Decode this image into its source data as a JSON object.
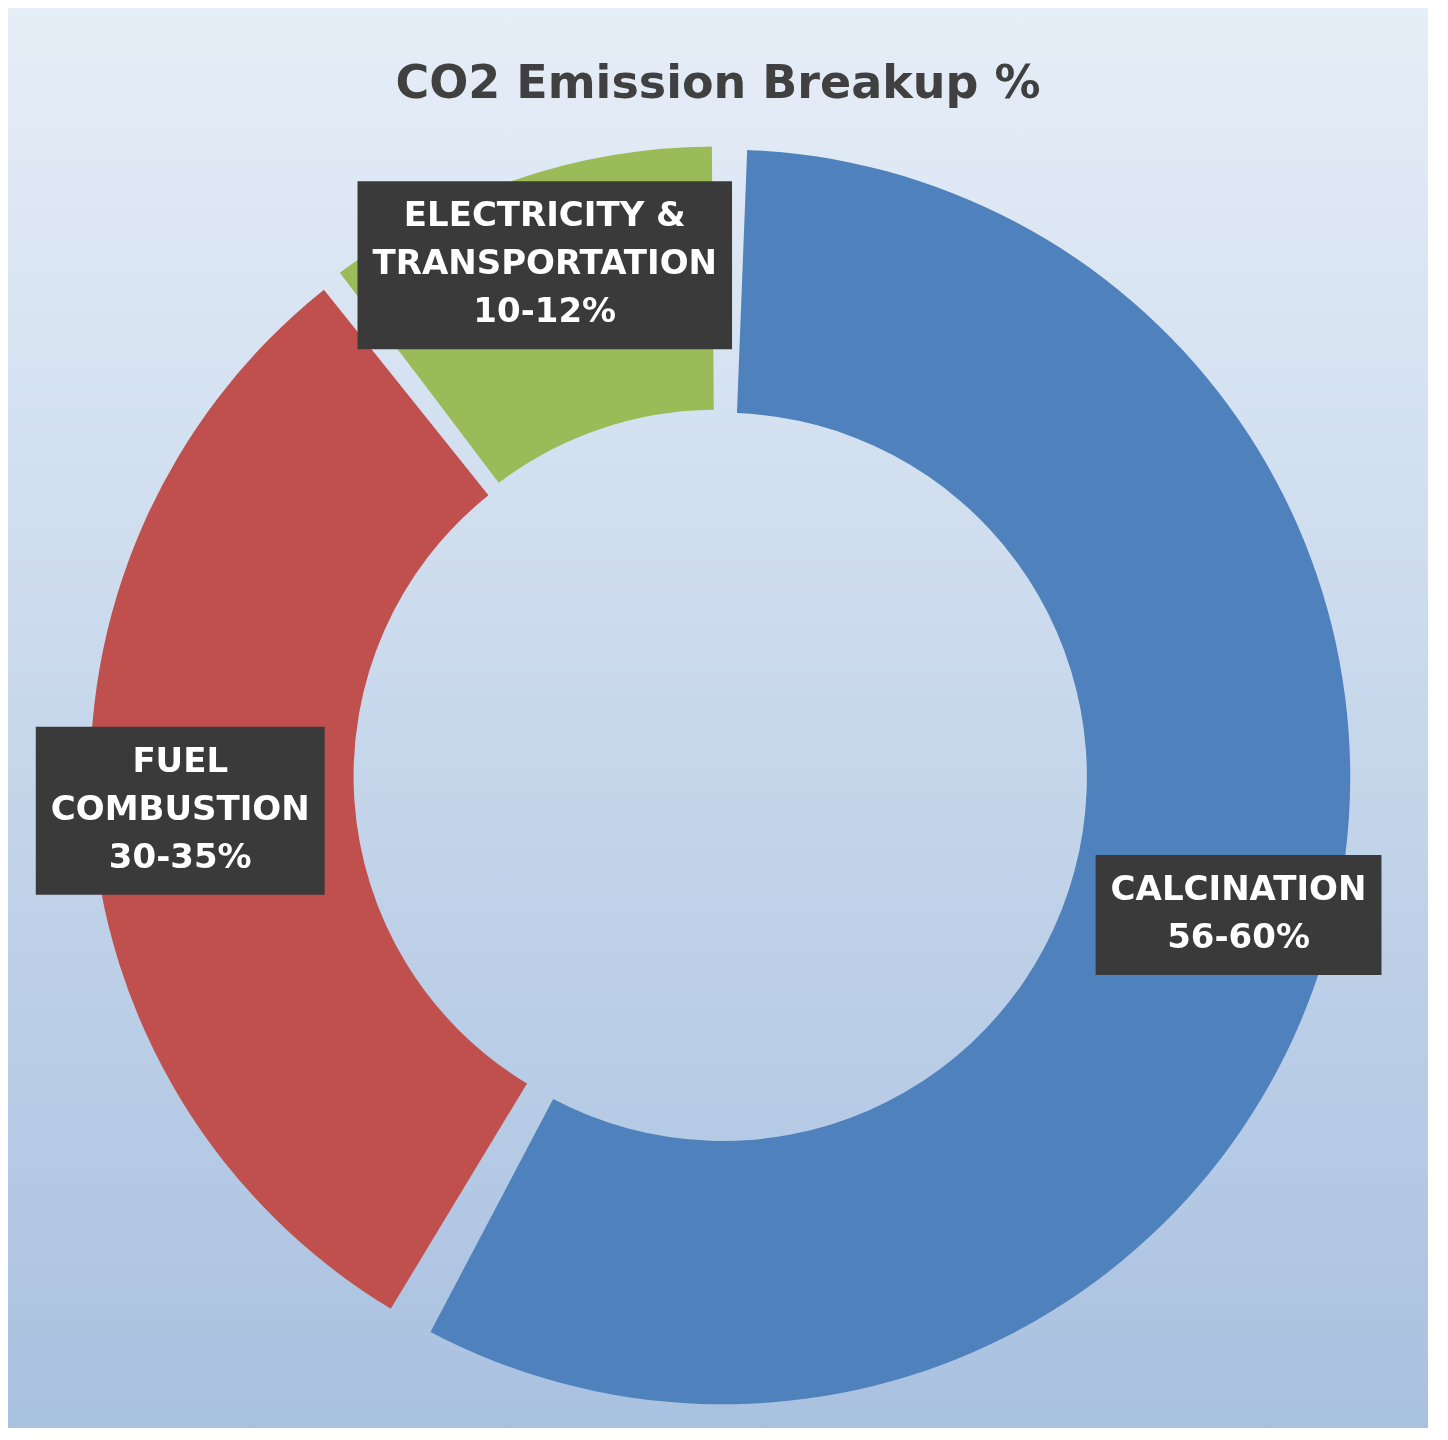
{
  "chart_data": {
    "type": "donut",
    "title": "CO2 Emission Breakup %",
    "categories": [
      "CALCINATION",
      "FUEL COMBUSTION",
      "ELECTRICITY & TRANSPORTATION"
    ],
    "values": [
      56,
      30,
      10
    ],
    "colors": [
      "#4f81bd",
      "#c0504d",
      "#9bbb59"
    ],
    "value_labels": [
      "56-60%",
      "30-35%",
      "10-12%"
    ],
    "legend": false
  }
}
